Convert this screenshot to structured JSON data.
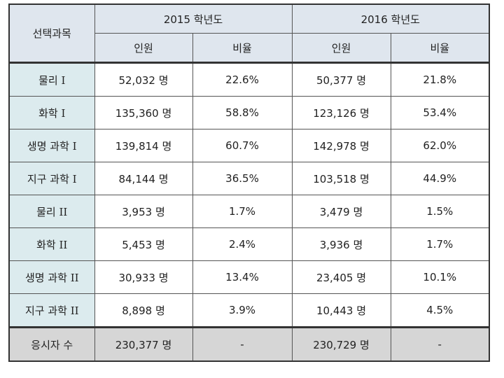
{
  "header": {
    "subject_label": "선택과목",
    "year2015_label": "2015 학년도",
    "year2016_label": "2016 학년도",
    "count_label": "인원",
    "ratio_label": "비율"
  },
  "rows": [
    {
      "subject": "물리 I",
      "n2015": "52,032 명",
      "r2015": "22.6%",
      "n2016": "50,377 명",
      "r2016": "21.8%"
    },
    {
      "subject": "화학 I",
      "n2015": "135,360 명",
      "r2015": "58.8%",
      "n2016": "123,126 명",
      "r2016": "53.4%"
    },
    {
      "subject": "생명 과학 I",
      "n2015": "139,814 명",
      "r2015": "60.7%",
      "n2016": "142,978 명",
      "r2016": "62.0%"
    },
    {
      "subject": "지구 과학 I",
      "n2015": "84,144 명",
      "r2015": "36.5%",
      "n2016": "103,518 명",
      "r2016": "44.9%"
    },
    {
      "subject": "물리 II",
      "n2015": "3,953 명",
      "r2015": "1.7%",
      "n2016": "3,479 명",
      "r2016": "1.5%"
    },
    {
      "subject": "화학 II",
      "n2015": "5,453 명",
      "r2015": "2.4%",
      "n2016": "3,936 명",
      "r2016": "1.7%"
    },
    {
      "subject": "생명 과학 II",
      "n2015": "30,933 명",
      "r2015": "13.4%",
      "n2016": "23,405 명",
      "r2016": "10.1%"
    },
    {
      "subject": "지구 과학 II",
      "n2015": "8,898 명",
      "r2015": "3.9%",
      "n2016": "10,443 명",
      "r2016": "4.5%"
    }
  ],
  "total": {
    "label": "응시자 수",
    "n2015": "230,377 명",
    "r2015": "-",
    "n2016": "230,729 명",
    "r2016": "-"
  },
  "colors": {
    "header_bg": "#dfe6ee",
    "subject_bg": "#dcebee",
    "total_bg": "#d6d6d6",
    "border": "#333333"
  }
}
